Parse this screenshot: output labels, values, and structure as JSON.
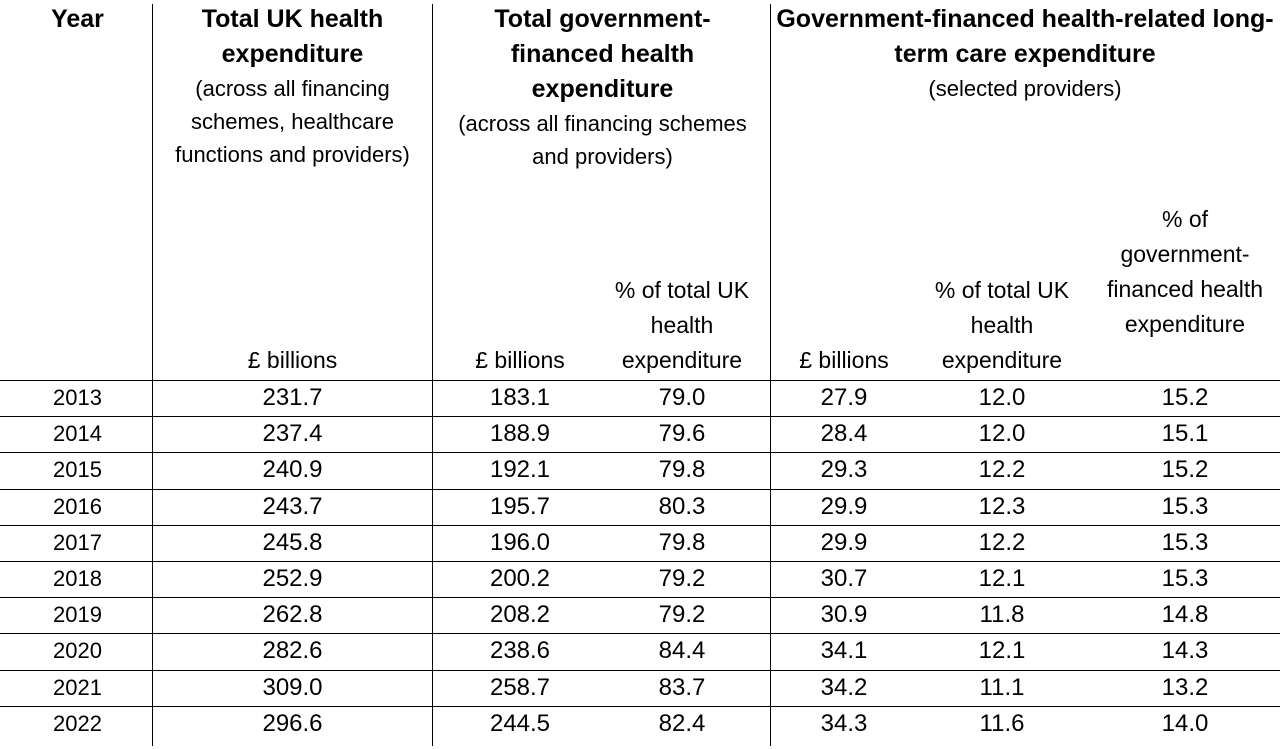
{
  "header": {
    "year": "Year",
    "col1_title": "Total UK health expenditure",
    "col1_sub": "(across all financing schemes, healthcare functions and providers)",
    "col2_title": "Total government-financed health expenditure",
    "col2_sub": "(across all financing schemes and providers)",
    "col3_title": "Government-financed health-related long-term care expenditure",
    "col3_sub": "(selected providers)",
    "unit_billions_1": "£ billions",
    "unit_billions_2": "£ billions",
    "unit_pct_total_1": "% of total UK health expenditure",
    "unit_billions_3": "£ billions",
    "unit_pct_total_2": "% of total UK health expenditure",
    "unit_pct_govt": "% of government-financed health expenditure"
  },
  "rows": [
    {
      "year": "2013",
      "total": "231.7",
      "gov": "183.1",
      "gov_pct": "79.0",
      "ltc": "27.9",
      "ltc_pct_total": "12.0",
      "ltc_pct_gov": "15.2"
    },
    {
      "year": "2014",
      "total": "237.4",
      "gov": "188.9",
      "gov_pct": "79.6",
      "ltc": "28.4",
      "ltc_pct_total": "12.0",
      "ltc_pct_gov": "15.1"
    },
    {
      "year": "2015",
      "total": "240.9",
      "gov": "192.1",
      "gov_pct": "79.8",
      "ltc": "29.3",
      "ltc_pct_total": "12.2",
      "ltc_pct_gov": "15.2"
    },
    {
      "year": "2016",
      "total": "243.7",
      "gov": "195.7",
      "gov_pct": "80.3",
      "ltc": "29.9",
      "ltc_pct_total": "12.3",
      "ltc_pct_gov": "15.3"
    },
    {
      "year": "2017",
      "total": "245.8",
      "gov": "196.0",
      "gov_pct": "79.8",
      "ltc": "29.9",
      "ltc_pct_total": "12.2",
      "ltc_pct_gov": "15.3"
    },
    {
      "year": "2018",
      "total": "252.9",
      "gov": "200.2",
      "gov_pct": "79.2",
      "ltc": "30.7",
      "ltc_pct_total": "12.1",
      "ltc_pct_gov": "15.3"
    },
    {
      "year": "2019",
      "total": "262.8",
      "gov": "208.2",
      "gov_pct": "79.2",
      "ltc": "30.9",
      "ltc_pct_total": "11.8",
      "ltc_pct_gov": "14.8"
    },
    {
      "year": "2020",
      "total": "282.6",
      "gov": "238.6",
      "gov_pct": "84.4",
      "ltc": "34.1",
      "ltc_pct_total": "12.1",
      "ltc_pct_gov": "14.3"
    },
    {
      "year": "2021",
      "total": "309.0",
      "gov": "258.7",
      "gov_pct": "83.7",
      "ltc": "34.2",
      "ltc_pct_total": "11.1",
      "ltc_pct_gov": "13.2"
    },
    {
      "year": "2022",
      "total": "296.6",
      "gov": "244.5",
      "gov_pct": "82.4",
      "ltc": "34.3",
      "ltc_pct_total": "11.6",
      "ltc_pct_gov": "14.0"
    }
  ]
}
